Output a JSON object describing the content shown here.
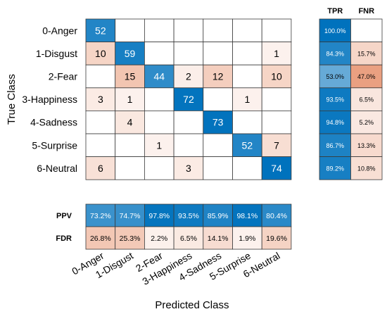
{
  "chart_data": {
    "type": "heatmap",
    "xlabel": "Predicted Class",
    "ylabel": "True Class",
    "classes": [
      "0-Anger",
      "1-Disgust",
      "2-Fear",
      "3-Happiness",
      "4-Sadness",
      "5-Surprise",
      "6-Neutral"
    ],
    "matrix": [
      [
        52,
        0,
        0,
        0,
        0,
        0,
        0
      ],
      [
        10,
        59,
        0,
        0,
        0,
        0,
        1
      ],
      [
        0,
        15,
        44,
        2,
        12,
        0,
        10
      ],
      [
        3,
        1,
        0,
        72,
        0,
        1,
        0
      ],
      [
        0,
        4,
        0,
        0,
        73,
        0,
        0
      ],
      [
        0,
        0,
        1,
        0,
        0,
        52,
        7
      ],
      [
        6,
        0,
        0,
        3,
        0,
        0,
        74
      ]
    ],
    "row_summary": {
      "headers": [
        "TPR",
        "FNR"
      ],
      "tpr": [
        "100.0%",
        "84.3%",
        "53.0%",
        "93.5%",
        "94.8%",
        "86.7%",
        "89.2%"
      ],
      "fnr": [
        "",
        "15.7%",
        "47.0%",
        "6.5%",
        "5.2%",
        "13.3%",
        "10.8%"
      ]
    },
    "column_summary": {
      "labels": [
        "PPV",
        "FDR"
      ],
      "ppv": [
        "73.2%",
        "74.7%",
        "97.8%",
        "93.5%",
        "85.9%",
        "98.1%",
        "80.4%"
      ],
      "fdr": [
        "26.8%",
        "25.3%",
        "2.2%",
        "6.5%",
        "14.1%",
        "1.9%",
        "19.6%"
      ]
    },
    "colors": {
      "correct": "#0072BD",
      "incorrect": "#D95319",
      "text_dark": "#000000",
      "text_light": "#ffffff",
      "grid": "#3a3a3a"
    }
  }
}
